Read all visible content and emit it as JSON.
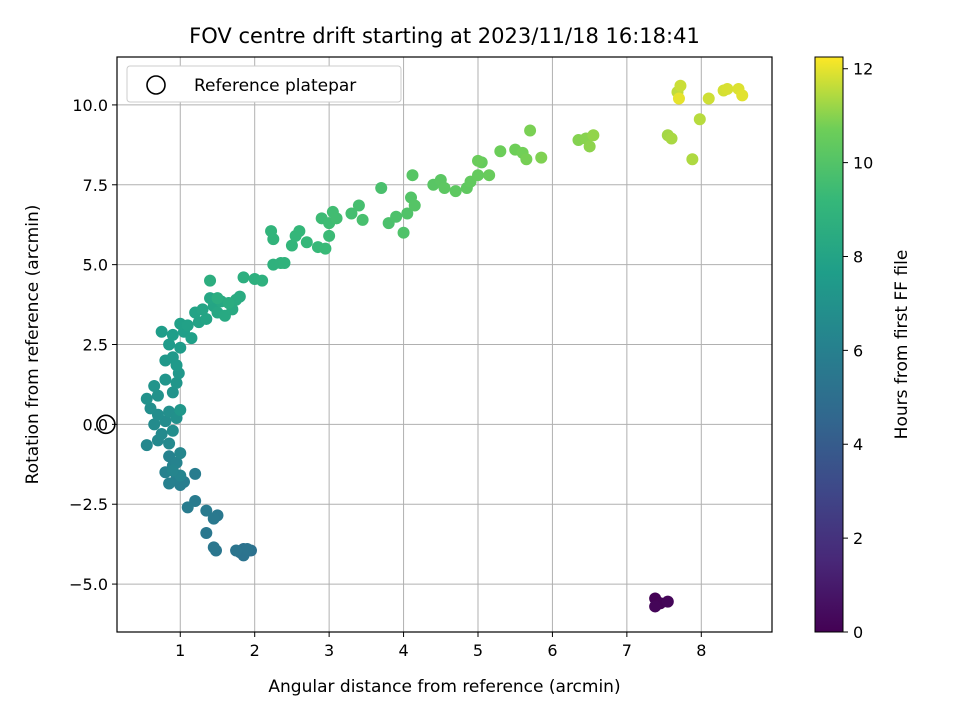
{
  "chart_data": {
    "type": "scatter",
    "title": "FOV centre drift starting at 2023/11/18 16:18:41",
    "xlabel": "Angular distance from reference (arcmin)",
    "ylabel": "Rotation from reference (arcmin)",
    "xlim": [
      0.15,
      8.95
    ],
    "ylim": [
      -6.5,
      11.5
    ],
    "xticks": [
      "1",
      "2",
      "3",
      "4",
      "5",
      "6",
      "7",
      "8"
    ],
    "yticks": [
      "−5.0",
      "−2.5",
      "0.0",
      "2.5",
      "5.0",
      "7.5",
      "10.0"
    ],
    "xtick_values": [
      1,
      2,
      3,
      4,
      5,
      6,
      7,
      8
    ],
    "ytick_values": [
      -5,
      -2.5,
      0,
      2.5,
      5,
      7.5,
      10
    ],
    "grid": true,
    "legend": {
      "placement": "top-left",
      "entries": [
        "Reference platepar"
      ]
    },
    "reference_point": [
      0,
      0
    ],
    "colormap": "viridis",
    "colorbar": {
      "label": "Hours from first FF file",
      "range": [
        0,
        12.25
      ],
      "ticks": [
        "0",
        "2",
        "4",
        "6",
        "8",
        "10",
        "12"
      ],
      "tick_values": [
        0,
        2,
        4,
        6,
        8,
        10,
        12
      ]
    },
    "points": [
      [
        7.38,
        -5.45,
        0.05
      ],
      [
        7.45,
        -5.6,
        0.1
      ],
      [
        7.38,
        -5.7,
        0.15
      ],
      [
        7.55,
        -5.55,
        0.2
      ],
      [
        1.95,
        -3.95,
        5.1
      ],
      [
        1.85,
        -3.9,
        5.15
      ],
      [
        1.8,
        -4.0,
        5.2
      ],
      [
        1.85,
        -4.1,
        5.25
      ],
      [
        1.9,
        -3.9,
        5.3
      ],
      [
        1.75,
        -3.95,
        5.35
      ],
      [
        1.48,
        -3.95,
        5.4
      ],
      [
        1.45,
        -3.85,
        5.45
      ],
      [
        1.35,
        -3.4,
        5.5
      ],
      [
        1.5,
        -2.85,
        5.55
      ],
      [
        1.45,
        -2.95,
        5.6
      ],
      [
        1.35,
        -2.7,
        5.65
      ],
      [
        1.2,
        -2.4,
        5.7
      ],
      [
        1.1,
        -2.6,
        5.75
      ],
      [
        1.2,
        -1.55,
        5.8
      ],
      [
        1.05,
        -1.8,
        5.85
      ],
      [
        1.0,
        -1.9,
        5.9
      ],
      [
        0.95,
        -1.7,
        5.95
      ],
      [
        0.85,
        -1.85,
        6.0
      ],
      [
        0.8,
        -1.5,
        6.05
      ],
      [
        0.9,
        -1.3,
        6.1
      ],
      [
        0.85,
        -1.0,
        6.15
      ],
      [
        0.95,
        -1.2,
        6.2
      ],
      [
        1.0,
        -1.6,
        6.25
      ],
      [
        0.9,
        -1.45,
        6.3
      ],
      [
        1.0,
        -0.9,
        6.35
      ],
      [
        0.55,
        -0.65,
        6.4
      ],
      [
        0.7,
        -0.5,
        6.45
      ],
      [
        0.85,
        -0.6,
        6.5
      ],
      [
        0.75,
        -0.3,
        6.55
      ],
      [
        0.65,
        0.0,
        6.6
      ],
      [
        0.8,
        0.1,
        6.65
      ],
      [
        0.9,
        -0.2,
        6.7
      ],
      [
        0.7,
        0.3,
        6.75
      ],
      [
        0.6,
        0.5,
        6.8
      ],
      [
        0.85,
        0.4,
        6.85
      ],
      [
        0.95,
        0.2,
        6.9
      ],
      [
        0.55,
        0.8,
        6.95
      ],
      [
        0.7,
        0.9,
        7.0
      ],
      [
        0.9,
        1.0,
        7.05
      ],
      [
        0.65,
        1.2,
        7.1
      ],
      [
        0.8,
        1.4,
        7.15
      ],
      [
        0.95,
        1.3,
        7.2
      ],
      [
        1.0,
        0.45,
        7.25
      ],
      [
        0.98,
        1.6,
        7.3
      ],
      [
        0.8,
        2.0,
        7.35
      ],
      [
        0.9,
        2.1,
        7.4
      ],
      [
        0.95,
        1.85,
        7.45
      ],
      [
        0.85,
        2.5,
        7.5
      ],
      [
        1.0,
        2.4,
        7.55
      ],
      [
        0.75,
        2.9,
        7.6
      ],
      [
        0.9,
        2.8,
        7.65
      ],
      [
        1.05,
        2.9,
        7.7
      ],
      [
        1.15,
        2.7,
        7.75
      ],
      [
        1.0,
        3.15,
        7.8
      ],
      [
        1.1,
        3.1,
        7.85
      ],
      [
        1.25,
        3.2,
        7.9
      ],
      [
        1.2,
        3.5,
        7.95
      ],
      [
        1.35,
        3.3,
        8.0
      ],
      [
        1.3,
        3.6,
        8.05
      ],
      [
        1.45,
        3.7,
        8.1
      ],
      [
        1.4,
        3.95,
        8.15
      ],
      [
        1.5,
        3.5,
        8.2
      ],
      [
        1.55,
        3.85,
        8.25
      ],
      [
        1.6,
        3.4,
        8.3
      ],
      [
        1.7,
        3.6,
        8.35
      ],
      [
        1.75,
        3.9,
        8.4
      ],
      [
        1.8,
        4.0,
        8.45
      ],
      [
        1.65,
        3.8,
        8.5
      ],
      [
        1.5,
        3.95,
        8.55
      ],
      [
        1.4,
        4.5,
        8.6
      ],
      [
        1.85,
        4.6,
        8.65
      ],
      [
        2.0,
        4.55,
        8.7
      ],
      [
        2.1,
        4.5,
        8.75
      ],
      [
        2.25,
        5.0,
        8.8
      ],
      [
        2.35,
        5.05,
        8.85
      ],
      [
        2.4,
        5.05,
        8.9
      ],
      [
        2.25,
        5.8,
        8.95
      ],
      [
        2.22,
        6.05,
        9.0
      ],
      [
        2.5,
        5.6,
        9.05
      ],
      [
        2.55,
        5.9,
        9.1
      ],
      [
        2.6,
        6.05,
        9.15
      ],
      [
        2.7,
        5.7,
        9.2
      ],
      [
        2.85,
        5.55,
        9.25
      ],
      [
        2.95,
        5.5,
        9.3
      ],
      [
        3.0,
        5.9,
        9.35
      ],
      [
        2.9,
        6.45,
        9.4
      ],
      [
        3.0,
        6.3,
        9.45
      ],
      [
        3.05,
        6.65,
        9.5
      ],
      [
        3.1,
        6.45,
        9.55
      ],
      [
        3.3,
        6.6,
        9.6
      ],
      [
        3.4,
        6.85,
        9.65
      ],
      [
        3.45,
        6.4,
        9.7
      ],
      [
        3.7,
        7.4,
        9.75
      ],
      [
        3.8,
        6.3,
        9.8
      ],
      [
        3.9,
        6.5,
        9.85
      ],
      [
        4.0,
        6.0,
        9.9
      ],
      [
        4.05,
        6.6,
        9.95
      ],
      [
        4.1,
        7.1,
        10.0
      ],
      [
        4.15,
        6.85,
        10.05
      ],
      [
        4.12,
        7.8,
        10.1
      ],
      [
        4.4,
        7.5,
        10.15
      ],
      [
        4.5,
        7.65,
        10.2
      ],
      [
        4.55,
        7.4,
        10.25
      ],
      [
        4.7,
        7.3,
        10.3
      ],
      [
        4.85,
        7.4,
        10.35
      ],
      [
        4.9,
        7.6,
        10.4
      ],
      [
        5.0,
        7.8,
        10.45
      ],
      [
        5.05,
        8.2,
        10.5
      ],
      [
        5.15,
        7.8,
        10.55
      ],
      [
        5.0,
        8.25,
        10.6
      ],
      [
        5.3,
        8.55,
        10.65
      ],
      [
        5.5,
        8.6,
        10.7
      ],
      [
        5.6,
        8.5,
        10.75
      ],
      [
        5.65,
        8.3,
        10.8
      ],
      [
        5.7,
        9.2,
        10.85
      ],
      [
        5.85,
        8.35,
        10.9
      ],
      [
        6.35,
        8.9,
        10.95
      ],
      [
        6.45,
        8.95,
        11.0
      ],
      [
        6.5,
        8.7,
        11.05
      ],
      [
        6.55,
        9.05,
        11.1
      ],
      [
        7.55,
        9.05,
        11.3
      ],
      [
        7.6,
        8.95,
        11.35
      ],
      [
        7.88,
        8.3,
        11.4
      ],
      [
        7.98,
        9.55,
        11.5
      ],
      [
        7.68,
        10.4,
        11.6
      ],
      [
        7.72,
        10.6,
        11.7
      ],
      [
        8.1,
        10.2,
        11.75
      ],
      [
        8.3,
        10.45,
        11.8
      ],
      [
        8.35,
        10.5,
        11.85
      ],
      [
        8.5,
        10.5,
        11.9
      ],
      [
        8.55,
        10.3,
        11.95
      ],
      [
        7.7,
        10.2,
        12.0
      ]
    ]
  }
}
